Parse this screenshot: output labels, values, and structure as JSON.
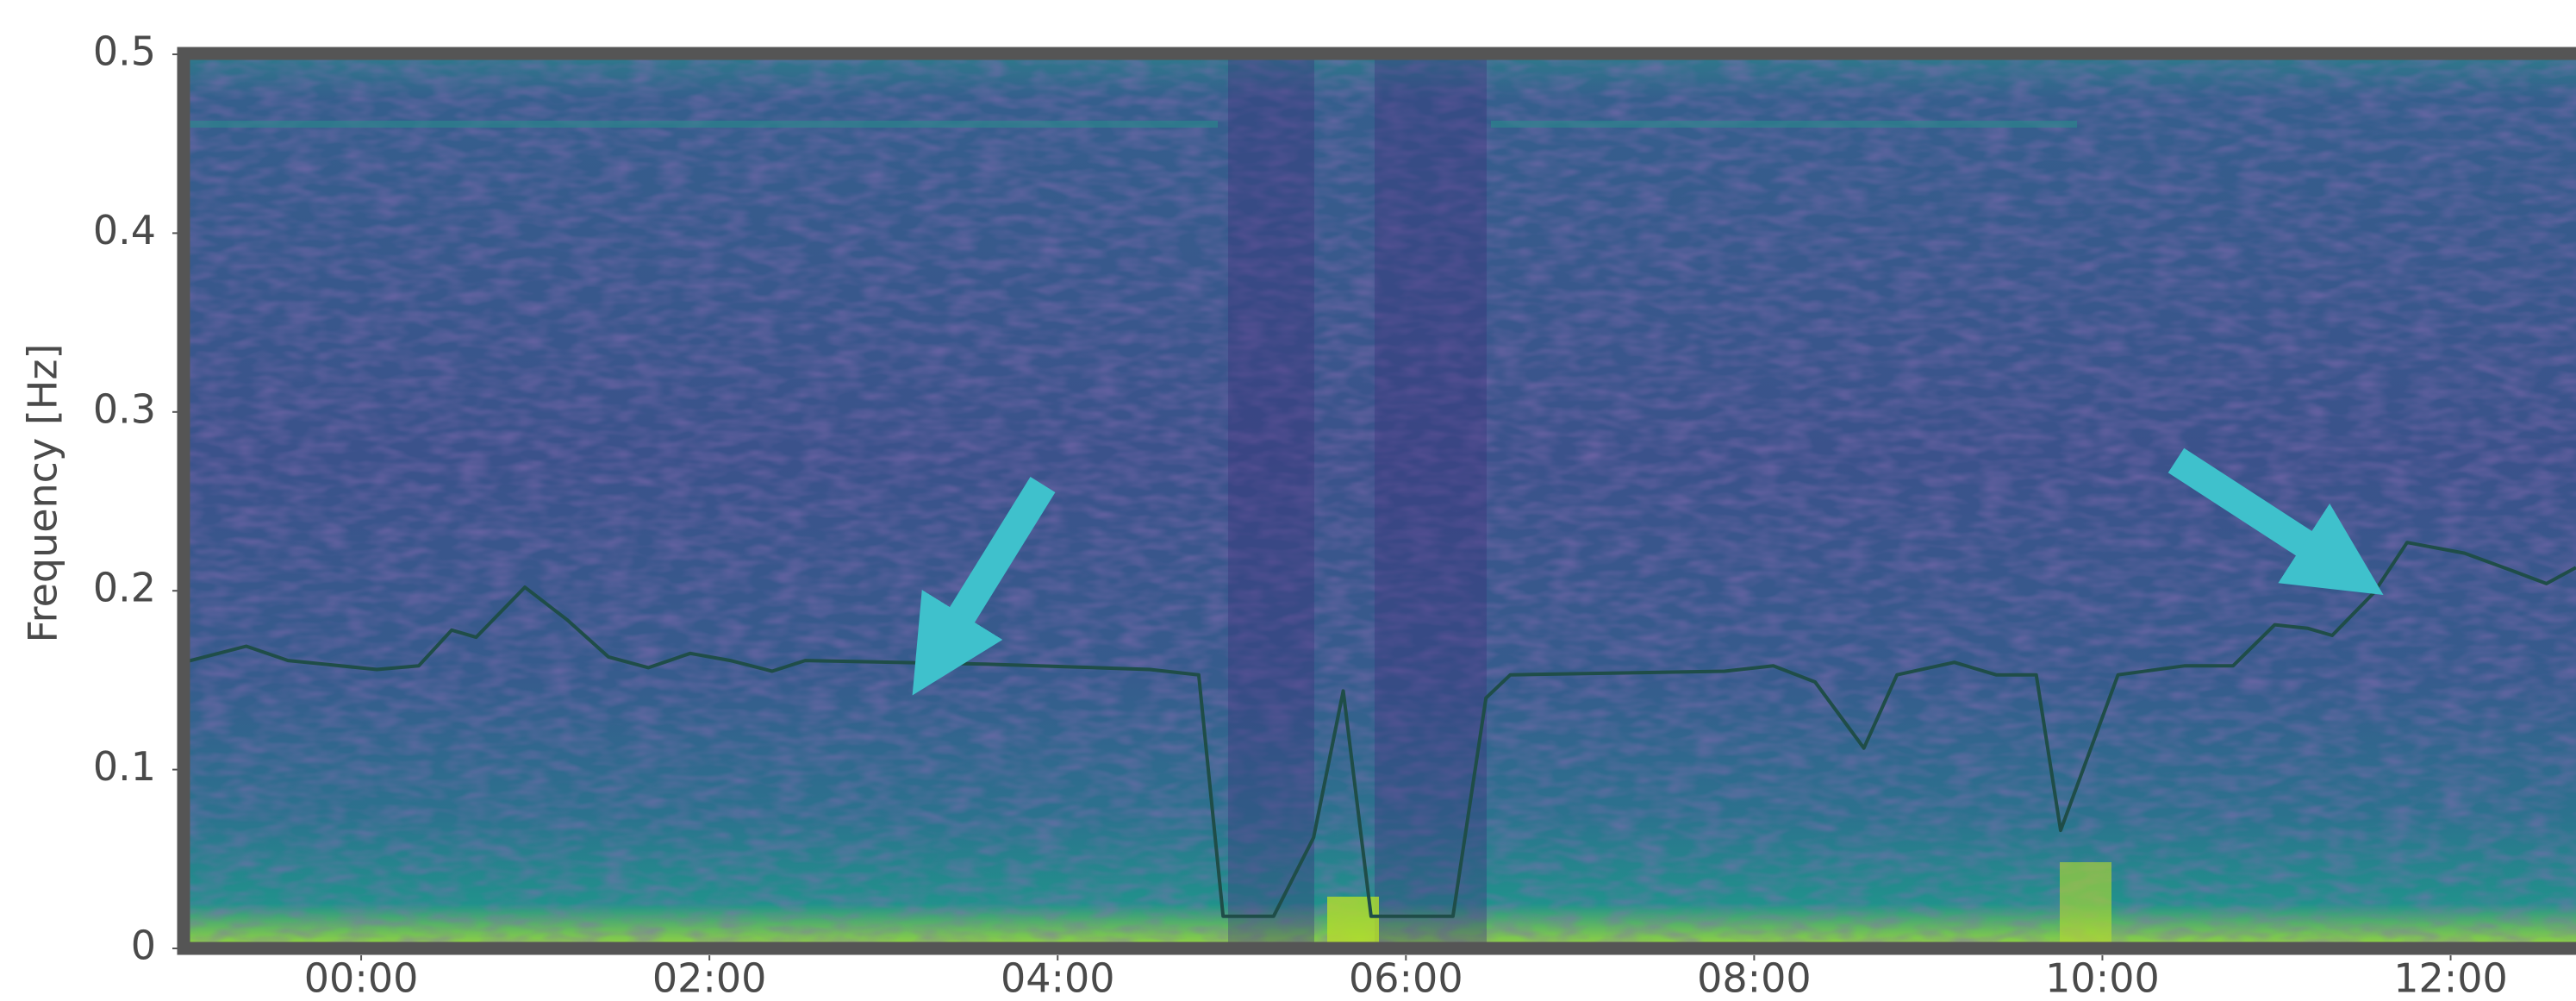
{
  "chart_data": {
    "type": "line",
    "y_label": "Frequency [Hz]",
    "xlim": [
      -1.02,
      12.72
    ],
    "ylim": [
      0,
      0.5
    ],
    "xticks": [
      {
        "value": 0,
        "label": "00:00"
      },
      {
        "value": 2,
        "label": "02:00"
      },
      {
        "value": 4,
        "label": "04:00"
      },
      {
        "value": 6,
        "label": "06:00"
      },
      {
        "value": 8,
        "label": "08:00"
      },
      {
        "value": 10,
        "label": "10:00"
      },
      {
        "value": 12,
        "label": "12:00"
      }
    ],
    "yticks": [
      0,
      0.1,
      0.2,
      0.3,
      0.4,
      0.5
    ],
    "x": [
      -1.02,
      -0.66,
      -0.42,
      0.09,
      0.33,
      0.52,
      0.66,
      0.94,
      1.18,
      1.42,
      1.65,
      1.89,
      2.12,
      2.36,
      2.55,
      3.58,
      4.53,
      4.81,
      4.95,
      5.24,
      5.47,
      5.64,
      5.8,
      6.27,
      6.46,
      6.6,
      7.83,
      8.11,
      8.35,
      8.63,
      8.82,
      9.15,
      9.39,
      9.62,
      9.76,
      10.09,
      10.47,
      10.75,
      10.99,
      11.18,
      11.32,
      11.56,
      11.75,
      12.08,
      12.36,
      12.55,
      12.72
    ],
    "series": [
      {
        "color": "#1f4d48",
        "values": [
          0.16,
          0.169,
          0.161,
          0.156,
          0.158,
          0.178,
          0.174,
          0.202,
          0.184,
          0.163,
          0.157,
          0.165,
          0.161,
          0.155,
          0.161,
          0.159,
          0.156,
          0.153,
          0.018,
          0.018,
          0.062,
          0.144,
          0.018,
          0.018,
          0.14,
          0.153,
          0.155,
          0.158,
          0.149,
          0.112,
          0.153,
          0.16,
          0.153,
          0.153,
          0.066,
          0.153,
          0.158,
          0.158,
          0.181,
          0.179,
          0.175,
          0.199,
          0.227,
          0.221,
          0.211,
          0.204,
          0.213
        ]
      }
    ]
  }
}
